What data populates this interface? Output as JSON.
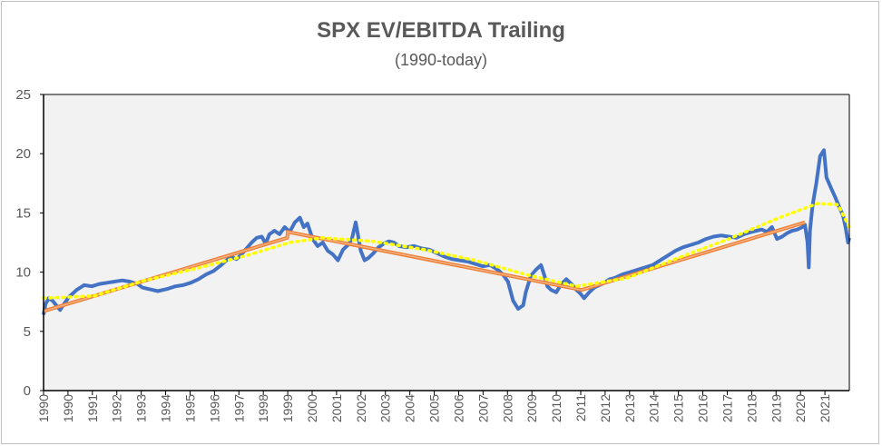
{
  "chart_data": {
    "type": "line",
    "title": "SPX EV/EBITDA Trailing",
    "subtitle": "(1990-today)",
    "xlabel": "",
    "ylabel": "",
    "ylim": [
      0,
      25
    ],
    "yticks": [
      0,
      5,
      10,
      15,
      20,
      25
    ],
    "xlim": [
      1990.0,
      2021.75
    ],
    "xticks": [
      "1990",
      "1990",
      "1991",
      "1992",
      "1993",
      "1994",
      "1995",
      "1996",
      "1997",
      "1998",
      "1999",
      "2000",
      "2001",
      "2002",
      "2003",
      "2004",
      "2005",
      "2006",
      "2007",
      "2008",
      "2009",
      "2010",
      "2011",
      "2012",
      "2013",
      "2014",
      "2015",
      "2016",
      "2017",
      "2018",
      "2019",
      "2020",
      "2021"
    ],
    "grid": false,
    "legend": "none",
    "colors": {
      "plot_bg": "#f2f2f2",
      "main": "#4472c4",
      "trend": "#ed7d31",
      "trend_inner": "#f4b183",
      "poly": "#ffff00",
      "axis": "#000000",
      "text": "#595959"
    },
    "series": [
      {
        "style": "main",
        "x": [
          1990.0,
          1990.08,
          1990.2,
          1990.35,
          1990.5,
          1990.65,
          1990.8,
          1991.0,
          1991.3,
          1991.6,
          1991.9,
          1992.2,
          1992.5,
          1992.8,
          1993.1,
          1993.4,
          1993.7,
          1993.9,
          1994.1,
          1994.3,
          1994.5,
          1994.7,
          1994.9,
          1995.2,
          1995.5,
          1995.8,
          1996.1,
          1996.4,
          1996.7,
          1997.0,
          1997.2,
          1997.4,
          1997.6,
          1997.8,
          1998.0,
          1998.2,
          1998.4,
          1998.6,
          1998.75,
          1998.9,
          1999.1,
          1999.3,
          1999.5,
          1999.7,
          1999.9,
          2000.1,
          2000.25,
          2000.4,
          2000.6,
          2000.8,
          2001.0,
          2001.2,
          2001.4,
          2001.6,
          2001.8,
          2002.0,
          2002.15,
          2002.3,
          2002.5,
          2002.65,
          2002.8,
          2003.0,
          2003.2,
          2003.4,
          2003.6,
          2003.8,
          2004.0,
          2004.3,
          2004.6,
          2004.9,
          2005.2,
          2005.5,
          2005.8,
          2006.1,
          2006.4,
          2006.7,
          2007.0,
          2007.3,
          2007.6,
          2007.9,
          2008.1,
          2008.3,
          2008.5,
          2008.7,
          2008.9,
          2009.0,
          2009.2,
          2009.4,
          2009.6,
          2009.75,
          2009.85,
          2010.0,
          2010.2,
          2010.4,
          2010.6,
          2010.8,
          2011.0,
          2011.15,
          2011.3,
          2011.5,
          2011.7,
          2011.9,
          2012.1,
          2012.3,
          2012.5,
          2012.8,
          2013.1,
          2013.4,
          2013.7,
          2014.0,
          2014.3,
          2014.6,
          2014.9,
          2015.2,
          2015.5,
          2015.8,
          2016.1,
          2016.4,
          2016.7,
          2017.0,
          2017.3,
          2017.6,
          2017.9,
          2018.1,
          2018.3,
          2018.5,
          2018.7,
          2018.9,
          2019.1,
          2019.3,
          2019.5,
          2019.7,
          2019.9,
          2020.0,
          2020.1,
          2020.15,
          2020.2,
          2020.3,
          2020.45,
          2020.6,
          2020.75,
          2020.85,
          2020.95,
          2021.05,
          2021.2,
          2021.35,
          2021.5,
          2021.6,
          2021.7,
          2021.75
        ],
        "y": [
          6.4,
          7.3,
          7.8,
          7.6,
          7.2,
          6.8,
          7.3,
          7.9,
          8.5,
          8.9,
          8.8,
          9.0,
          9.1,
          9.2,
          9.3,
          9.2,
          9.0,
          8.7,
          8.6,
          8.5,
          8.4,
          8.5,
          8.6,
          8.8,
          8.9,
          9.1,
          9.4,
          9.8,
          10.1,
          10.6,
          11.0,
          11.3,
          11.1,
          11.5,
          12.0,
          12.5,
          12.9,
          13.0,
          12.4,
          13.2,
          13.5,
          13.2,
          13.8,
          13.4,
          14.2,
          14.6,
          13.8,
          14.1,
          12.8,
          12.2,
          12.5,
          11.8,
          11.5,
          11.0,
          11.9,
          12.3,
          12.8,
          14.2,
          11.8,
          11.0,
          11.2,
          11.6,
          12.1,
          12.4,
          12.6,
          12.5,
          12.2,
          12.1,
          12.2,
          12.0,
          11.9,
          11.6,
          11.3,
          11.1,
          11.0,
          10.9,
          10.7,
          10.5,
          10.6,
          10.2,
          9.8,
          9.2,
          7.6,
          6.9,
          7.2,
          8.3,
          9.7,
          10.2,
          10.6,
          9.6,
          8.8,
          8.5,
          8.3,
          9.0,
          9.4,
          9.0,
          8.5,
          8.2,
          7.8,
          8.3,
          8.7,
          8.9,
          9.1,
          9.4,
          9.5,
          9.8,
          10.0,
          10.2,
          10.4,
          10.6,
          11.0,
          11.4,
          11.8,
          12.1,
          12.3,
          12.5,
          12.8,
          13.0,
          13.1,
          13.0,
          12.9,
          13.2,
          13.4,
          13.5,
          13.6,
          13.4,
          13.8,
          12.8,
          13.0,
          13.3,
          13.5,
          13.6,
          13.8,
          14.0,
          12.5,
          10.4,
          13.5,
          15.6,
          17.5,
          19.8,
          20.3,
          18.0,
          17.5,
          17.0,
          16.3,
          15.5,
          14.8,
          13.8,
          12.5,
          12.9
        ]
      },
      {
        "style": "trend",
        "x": [
          1990.0,
          1999.6,
          1999.62,
          2011.2,
          2020.0
        ],
        "y": [
          6.7,
          12.9,
          13.4,
          8.5,
          14.2
        ]
      },
      {
        "style": "poly",
        "x": [
          1990.0,
          1992.0,
          1994.0,
          1996.0,
          1998.0,
          1999.7,
          2001.0,
          2003.0,
          2005.0,
          2007.0,
          2009.0,
          2011.0,
          2013.0,
          2015.0,
          2017.0,
          2019.0,
          2020.5,
          2021.3,
          2021.75
        ],
        "y": [
          7.8,
          8.0,
          9.3,
          10.3,
          11.4,
          12.5,
          12.9,
          12.6,
          11.9,
          11.0,
          9.8,
          8.8,
          9.5,
          11.2,
          12.8,
          14.6,
          15.8,
          15.7,
          13.8
        ]
      }
    ]
  }
}
